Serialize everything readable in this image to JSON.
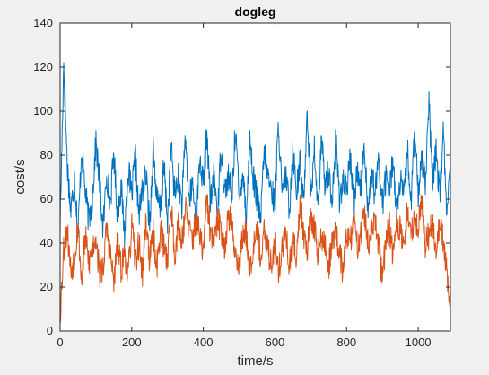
{
  "chart_data": {
    "type": "line",
    "title": "dogleg",
    "xlabel": "time/s",
    "ylabel": "cost/s",
    "xlim": [
      0,
      1090
    ],
    "ylim": [
      0,
      140
    ],
    "xticks": [
      0,
      200,
      400,
      600,
      800,
      1000
    ],
    "yticks": [
      0,
      20,
      40,
      60,
      80,
      100,
      120,
      140
    ],
    "xtick_labels": [
      "0",
      "200",
      "400",
      "600",
      "800",
      "1000"
    ],
    "ytick_labels": [
      "0",
      "20",
      "40",
      "60",
      "80",
      "100",
      "120",
      "140"
    ],
    "grid": false,
    "legend": false,
    "series": [
      {
        "color": "#0072bd",
        "x_start": 0,
        "x_step": 1,
        "sample_count": 1090,
        "values_sampled_every_10": [
          48,
          122,
          76,
          54,
          70,
          44,
          83,
          64,
          50,
          60,
          86,
          68,
          46,
          72,
          58,
          81,
          53,
          66,
          44,
          74,
          61,
          80,
          52,
          65,
          71,
          48,
          83,
          60,
          55,
          75,
          50,
          84,
          62,
          70,
          57,
          88,
          59,
          67,
          48,
          79,
          66,
          91,
          57,
          72,
          53,
          85,
          64,
          70,
          61,
          94,
          58,
          74,
          52,
          87,
          69,
          60,
          50,
          82,
          71,
          64,
          58,
          95,
          60,
          72,
          55,
          84,
          64,
          76,
          58,
          102,
          61,
          82,
          55,
          86,
          67,
          73,
          59,
          88,
          61,
          68,
          63,
          80,
          56,
          74,
          66,
          85,
          55,
          71,
          62,
          78,
          58,
          70,
          64,
          79,
          53,
          68,
          60,
          83,
          58,
          91,
          62,
          80,
          69,
          104,
          66,
          82,
          61,
          89,
          56,
          72
        ],
        "min_approx": 30,
        "max_approx": 122
      },
      {
        "color": "#d95319",
        "x_start": 0,
        "x_step": 1,
        "sample_count": 1090,
        "values_sampled_every_10": [
          7,
          38,
          46,
          27,
          34,
          49,
          22,
          43,
          31,
          37,
          44,
          25,
          29,
          47,
          35,
          22,
          40,
          28,
          36,
          25,
          48,
          31,
          40,
          26,
          51,
          32,
          44,
          29,
          46,
          38,
          33,
          57,
          35,
          48,
          41,
          56,
          46,
          42,
          51,
          43,
          36,
          60,
          44,
          40,
          50,
          46,
          39,
          53,
          47,
          35,
          30,
          43,
          45,
          28,
          40,
          49,
          32,
          44,
          37,
          30,
          42,
          27,
          38,
          45,
          29,
          40,
          34,
          59,
          45,
          38,
          50,
          47,
          36,
          42,
          39,
          29,
          40,
          46,
          35,
          27,
          43,
          41,
          50,
          39,
          44,
          54,
          38,
          46,
          49,
          37,
          25,
          41,
          47,
          34,
          50,
          45,
          38,
          56,
          43,
          52,
          47,
          62,
          39,
          44,
          51,
          36,
          49,
          40,
          27,
          12
        ],
        "min_approx": 3,
        "max_approx": 62
      }
    ]
  }
}
